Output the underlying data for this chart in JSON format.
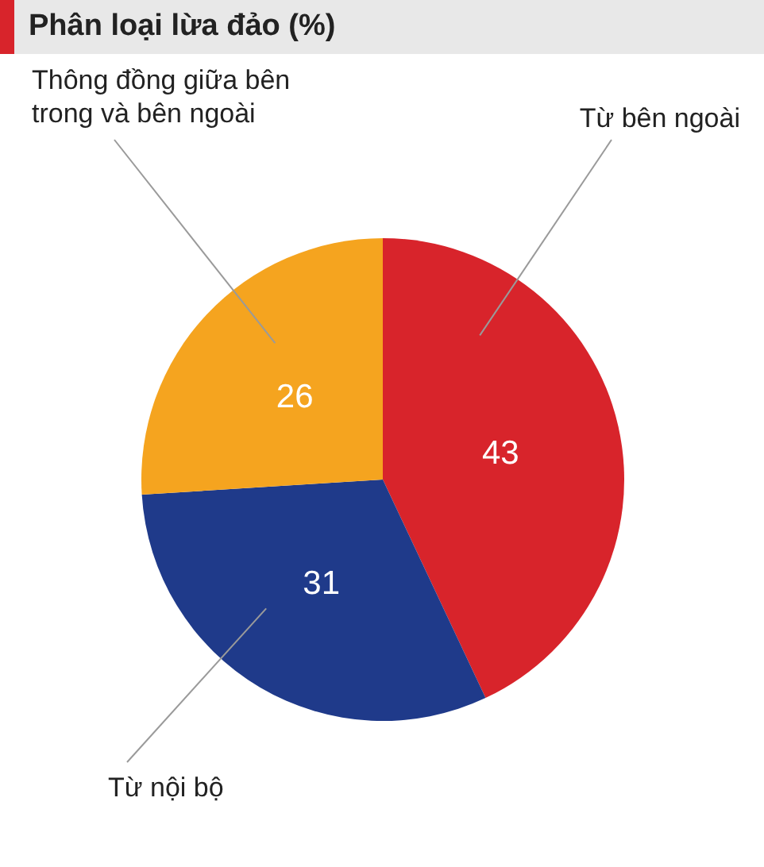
{
  "chart_data": {
    "type": "pie",
    "title": "Phân loại lừa đảo (%)",
    "categories": [
      "Từ bên ngoài",
      "Từ nội bộ",
      "Thông đồng giữa bên trong và bên ngoài"
    ],
    "values": [
      43,
      31,
      26
    ],
    "colors": [
      "#d8242b",
      "#1f3a8a",
      "#f5a41f"
    ],
    "data_labels": true,
    "legend": false
  }
}
